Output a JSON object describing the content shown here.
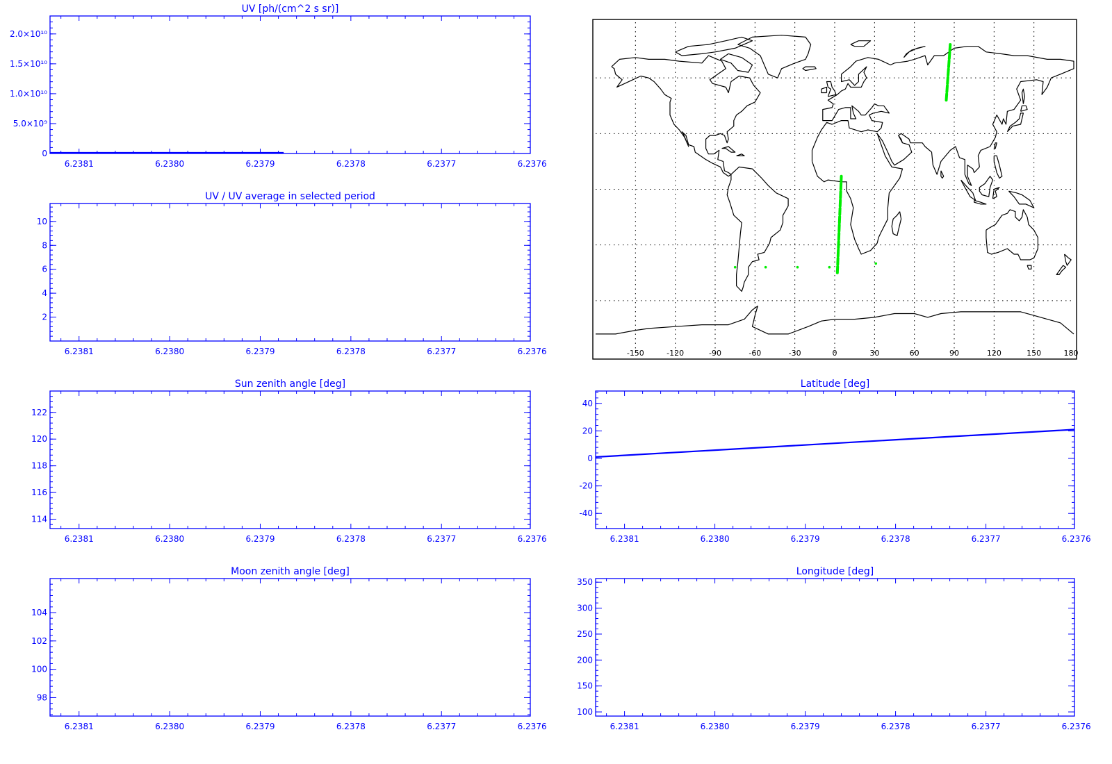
{
  "colors": {
    "axis": "#0000ff",
    "map_outline": "#000000",
    "track": "#00ee00",
    "grid": "#000000"
  },
  "x_ticks": [
    "6.2381",
    "6.2380",
    "6.2379",
    "6.2378",
    "6.2377",
    "6.2376"
  ],
  "map": {
    "lon_ticks": [
      "-150",
      "-120",
      "-90",
      "-60",
      "-30",
      "0",
      "30",
      "60",
      "90",
      "120",
      "150",
      "180"
    ],
    "xlim": [
      -180,
      180
    ],
    "ylim": [
      -90,
      90
    ],
    "grid": true,
    "track_segments": [
      {
        "lon": [
          84,
          87
        ],
        "lat": [
          48,
          78
        ]
      },
      {
        "lon": [
          2,
          5
        ],
        "lat": [
          -45,
          7
        ]
      }
    ],
    "track_points": [
      {
        "lon": -75,
        "lat": -42
      },
      {
        "lon": -52,
        "lat": -42
      },
      {
        "lon": -28,
        "lat": -42
      },
      {
        "lon": -4,
        "lat": -42
      },
      {
        "lon": 31,
        "lat": -40
      }
    ]
  },
  "chart_data": [
    {
      "type": "line",
      "title": "UV [ph/(cm^2 s sr)]",
      "ytick_labels": [
        "0",
        "5.0×10⁹",
        "1.0×10¹⁰",
        "1.5×10¹⁰",
        "2.0×10¹⁰"
      ],
      "ytick_values": [
        0,
        5000000000.0,
        10000000000.0,
        15000000000.0,
        20000000000.0
      ],
      "ylim": [
        0,
        23000000000.0
      ],
      "series": [
        {
          "x": [
            0,
            0.485,
            0.485
          ],
          "y": [
            120000000.0,
            120000000.0,
            0
          ]
        }
      ]
    },
    {
      "type": "line",
      "title": "UV / UV average in selected period",
      "ytick_labels": [
        "2",
        "4",
        "6",
        "8",
        "10"
      ],
      "ytick_values": [
        2,
        4,
        6,
        8,
        10
      ],
      "ylim": [
        0,
        11.5
      ],
      "series": []
    },
    {
      "type": "line",
      "title": "Sun zenith angle [deg]",
      "ytick_labels": [
        "114",
        "116",
        "118",
        "120",
        "122"
      ],
      "ytick_values": [
        114,
        116,
        118,
        120,
        122
      ],
      "ylim": [
        113.3,
        123.6
      ],
      "series": []
    },
    {
      "type": "line",
      "title": "Moon zenith angle [deg]",
      "ytick_labels": [
        "98",
        "100",
        "102",
        "104"
      ],
      "ytick_values": [
        98,
        100,
        102,
        104
      ],
      "ylim": [
        96.7,
        106.4
      ],
      "series": []
    },
    {
      "type": "line",
      "title": "Latitude [deg]",
      "ytick_labels": [
        "-40",
        "-20",
        "0",
        "20",
        "40"
      ],
      "ytick_values": [
        -40,
        -20,
        0,
        20,
        40
      ],
      "ylim": [
        -51,
        49
      ],
      "series": [
        {
          "x": [
            0,
            1
          ],
          "y": [
            1,
            21
          ]
        }
      ]
    },
    {
      "type": "line",
      "title": "Longitude [deg]",
      "ytick_labels": [
        "100",
        "150",
        "200",
        "250",
        "300",
        "350"
      ],
      "ytick_values": [
        100,
        150,
        200,
        250,
        300,
        350
      ],
      "ylim": [
        92,
        357
      ],
      "series": []
    }
  ]
}
